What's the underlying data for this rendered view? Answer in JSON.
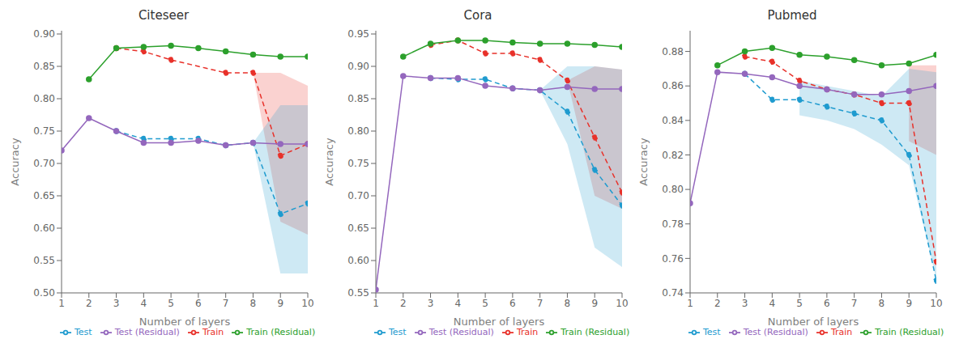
{
  "chart_data": [
    {
      "type": "line",
      "title": "Citeseer",
      "x_label": "Number of layers",
      "y_label": "Accuracy",
      "x": [
        1,
        2,
        3,
        4,
        5,
        6,
        7,
        8,
        9,
        10
      ],
      "xlim": [
        1,
        10
      ],
      "xticks": [
        1,
        2,
        3,
        4,
        5,
        6,
        7,
        8,
        9,
        10
      ],
      "ylim": [
        0.5,
        0.905
      ],
      "yticks": [
        {
          "value": 0.5,
          "label": "0.50"
        },
        0.55,
        {
          "value": 0.6,
          "label": "0.60"
        },
        0.65,
        {
          "value": 0.7,
          "label": "0.70"
        },
        0.75,
        {
          "value": 0.8,
          "label": "0.80"
        },
        0.85,
        {
          "value": 0.9,
          "label": "0.90"
        }
      ],
      "grid": false,
      "legend": "lower left",
      "series": [
        {
          "name": "Train",
          "color": "#e8312a",
          "line_style": "dashed",
          "marker": "circle",
          "values": [
            null,
            null,
            0.878,
            0.873,
            0.86,
            null,
            0.84,
            0.84,
            0.712,
            0.73
          ]
        },
        {
          "name": "Train (Residual)",
          "color": "#2ca02c",
          "line_style": "solid",
          "marker": "circle",
          "values": [
            null,
            0.83,
            0.878,
            0.88,
            0.882,
            0.878,
            0.873,
            0.868,
            0.865,
            0.865
          ]
        },
        {
          "name": "Test",
          "color": "#1f9bcf",
          "line_style": "dashed",
          "marker": "circle",
          "values": [
            null,
            null,
            0.75,
            0.738,
            0.738,
            0.738,
            0.728,
            0.732,
            0.622,
            0.638
          ]
        },
        {
          "name": "Test (Residual)",
          "color": "#9467bd",
          "line_style": "solid",
          "marker": "circle",
          "values": [
            0.72,
            0.77,
            0.75,
            0.732,
            0.732,
            0.735,
            0.728,
            0.732,
            0.73,
            0.73
          ]
        }
      ],
      "bands": [
        {
          "color": "#e8312a",
          "x": [
            8,
            9,
            10
          ],
          "low": [
            0.84,
            0.61,
            0.59
          ],
          "high": [
            0.84,
            0.84,
            0.82
          ]
        },
        {
          "color": "#1f9bcf",
          "x": [
            8,
            9,
            10
          ],
          "low": [
            0.732,
            0.53,
            0.53
          ],
          "high": [
            0.732,
            0.79,
            0.79
          ]
        }
      ]
    },
    {
      "type": "line",
      "title": "Cora",
      "x_label": "Number of layers",
      "y_label": "Accuracy",
      "x": [
        1,
        2,
        3,
        4,
        5,
        6,
        7,
        8,
        9,
        10
      ],
      "xlim": [
        1,
        10
      ],
      "xticks": [
        1,
        2,
        3,
        4,
        5,
        6,
        7,
        8,
        9,
        10
      ],
      "ylim": [
        0.55,
        0.955
      ],
      "yticks": [
        0.55,
        {
          "value": 0.6,
          "label": "0.60"
        },
        0.65,
        {
          "value": 0.7,
          "label": "0.70"
        },
        0.75,
        {
          "value": 0.8,
          "label": "0.80"
        },
        0.85,
        {
          "value": 0.9,
          "label": "0.90"
        },
        0.95
      ],
      "grid": false,
      "legend": "lower left",
      "series": [
        {
          "name": "Train",
          "color": "#e8312a",
          "line_style": "dashed",
          "marker": "circle",
          "values": [
            null,
            null,
            0.933,
            0.94,
            0.92,
            0.92,
            0.91,
            0.878,
            0.79,
            0.705
          ]
        },
        {
          "name": "Train (Residual)",
          "color": "#2ca02c",
          "line_style": "solid",
          "marker": "circle",
          "values": [
            null,
            0.915,
            0.935,
            0.94,
            0.94,
            0.937,
            0.935,
            0.935,
            0.933,
            0.93
          ]
        },
        {
          "name": "Test",
          "color": "#1f9bcf",
          "line_style": "dashed",
          "marker": "circle",
          "values": [
            null,
            null,
            0.882,
            0.88,
            0.88,
            0.866,
            0.863,
            0.83,
            0.74,
            0.685
          ]
        },
        {
          "name": "Test (Residual)",
          "color": "#9467bd",
          "line_style": "solid",
          "marker": "circle",
          "values": [
            0.555,
            0.885,
            0.882,
            0.882,
            0.87,
            0.866,
            0.863,
            0.868,
            0.865,
            0.865
          ]
        }
      ],
      "bands": [
        {
          "color": "#e8312a",
          "x": [
            8,
            9,
            10
          ],
          "low": [
            0.878,
            0.7,
            0.68
          ],
          "high": [
            0.878,
            0.9,
            0.895
          ]
        },
        {
          "color": "#1f9bcf",
          "x": [
            7,
            8,
            9,
            10
          ],
          "low": [
            0.863,
            0.78,
            0.62,
            0.59
          ],
          "high": [
            0.863,
            0.9,
            0.9,
            0.895
          ]
        }
      ]
    },
    {
      "type": "line",
      "title": "Pubmed",
      "x_label": "Number of layers",
      "y_label": "Accuracy",
      "x": [
        1,
        2,
        3,
        4,
        5,
        6,
        7,
        8,
        9,
        10
      ],
      "xlim": [
        1,
        10
      ],
      "xticks": [
        1,
        2,
        3,
        4,
        5,
        6,
        7,
        8,
        9,
        10
      ],
      "ylim": [
        0.74,
        0.892
      ],
      "yticks": [
        0.74,
        0.76,
        0.78,
        {
          "value": 0.8,
          "label": "0.80"
        },
        0.82,
        0.84,
        0.86,
        0.88
      ],
      "grid": false,
      "legend": "lower left",
      "series": [
        {
          "name": "Train",
          "color": "#e8312a",
          "line_style": "dashed",
          "marker": "circle",
          "values": [
            null,
            null,
            0.877,
            0.874,
            0.863,
            0.858,
            0.855,
            0.85,
            0.85,
            0.758
          ]
        },
        {
          "name": "Train (Residual)",
          "color": "#2ca02c",
          "line_style": "solid",
          "marker": "circle",
          "values": [
            null,
            0.872,
            0.88,
            0.882,
            0.878,
            0.877,
            0.875,
            0.872,
            0.873,
            0.878
          ]
        },
        {
          "name": "Test",
          "color": "#1f9bcf",
          "line_style": "dashed",
          "marker": "circle",
          "values": [
            null,
            null,
            0.867,
            0.852,
            0.852,
            0.848,
            0.844,
            0.84,
            0.82,
            0.747
          ]
        },
        {
          "name": "Test (Residual)",
          "color": "#9467bd",
          "line_style": "solid",
          "marker": "circle",
          "values": [
            0.792,
            0.868,
            0.867,
            0.865,
            0.86,
            0.858,
            0.855,
            0.855,
            0.857,
            0.86
          ]
        }
      ],
      "bands": [
        {
          "color": "#e8312a",
          "x": [
            9,
            10
          ],
          "low": [
            0.828,
            0.82
          ],
          "high": [
            0.872,
            0.872
          ]
        },
        {
          "color": "#1f9bcf",
          "x": [
            5,
            6,
            7,
            8,
            9,
            10
          ],
          "low": [
            0.843,
            0.84,
            0.835,
            0.826,
            0.814,
            0.748
          ],
          "high": [
            0.863,
            0.86,
            0.857,
            0.854,
            0.87,
            0.868
          ]
        }
      ]
    }
  ]
}
